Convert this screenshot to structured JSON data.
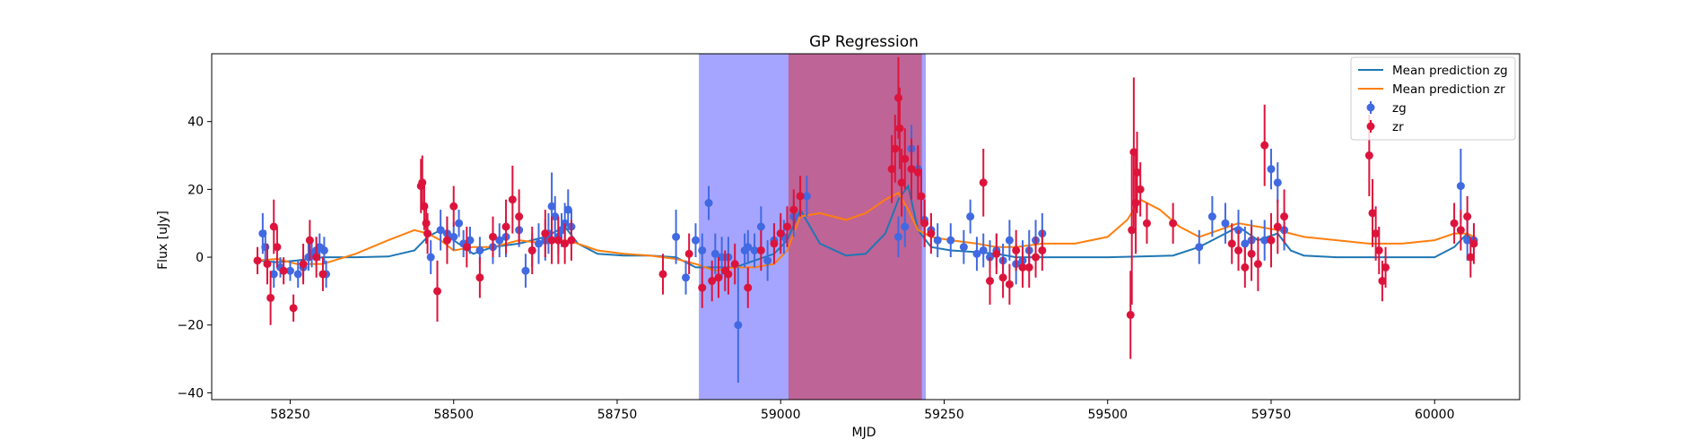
{
  "chart_data": {
    "type": "scatter",
    "title": "GP Regression",
    "xlabel": "MJD",
    "ylabel": "Flux [uJy]",
    "xlim": [
      58130,
      60130
    ],
    "ylim": [
      -42,
      60
    ],
    "xticks": [
      58250,
      58500,
      58750,
      59000,
      59250,
      59500,
      59750,
      60000
    ],
    "yticks": [
      -40,
      -20,
      0,
      20,
      40
    ],
    "grid": false,
    "legend_position": "top-right",
    "colors": {
      "zg_line": "#1f77b4",
      "zr_line": "#ff7f0e",
      "zg_points": "#4169e1",
      "zr_points": "#dc143c",
      "span_blue": "#8c8cff",
      "span_red": "#c06090"
    },
    "spans": [
      {
        "name": "zg",
        "x0": 58875,
        "x1": 59222,
        "color": "#8c8cff"
      },
      {
        "name": "zr",
        "x0": 59012,
        "x1": 59216,
        "color": "#c06090"
      }
    ],
    "legend": [
      {
        "label": "Mean prediction zg",
        "kind": "line",
        "color": "#1f77b4"
      },
      {
        "label": "Mean prediction zr",
        "kind": "line",
        "color": "#ff7f0e"
      },
      {
        "label": "zg",
        "kind": "errorbar",
        "color": "#4169e1"
      },
      {
        "label": "zr",
        "kind": "errorbar",
        "color": "#dc143c"
      }
    ],
    "series": [
      {
        "name": "Mean prediction zg",
        "kind": "line",
        "color": "#1f77b4",
        "x": [
          58200,
          58230,
          58260,
          58300,
          58350,
          58400,
          58440,
          58460,
          58480,
          58500,
          58530,
          58560,
          58600,
          58640,
          58670,
          58690,
          58720,
          58760,
          58800,
          58840,
          58870,
          58900,
          58930,
          58960,
          58990,
          59010,
          59030,
          59060,
          59100,
          59130,
          59160,
          59180,
          59195,
          59210,
          59230,
          59260,
          59300,
          59330,
          59360,
          59400,
          59450,
          59500,
          59550,
          59600,
          59640,
          59670,
          59700,
          59730,
          59760,
          59780,
          59800,
          59850,
          59900,
          59950,
          60000,
          60030,
          60050,
          60060
        ],
        "y": [
          -1,
          -1.5,
          -1,
          0,
          0,
          0.2,
          2,
          6,
          8,
          5,
          1,
          3,
          4,
          6,
          9,
          4,
          1,
          0.5,
          0.5,
          0,
          -3,
          -3,
          -3,
          -1,
          1,
          5,
          14,
          4,
          0.5,
          1,
          7,
          17,
          21,
          8,
          3,
          2,
          1.5,
          1,
          0,
          0,
          0,
          0,
          0.2,
          0.5,
          3,
          6,
          9,
          5,
          7,
          2,
          0.5,
          0,
          0,
          0,
          0,
          3,
          7,
          4
        ]
      },
      {
        "name": "Mean prediction zr",
        "kind": "line",
        "color": "#ff7f0e",
        "x": [
          58200,
          58230,
          58260,
          58300,
          58350,
          58400,
          58440,
          58460,
          58480,
          58500,
          58530,
          58560,
          58600,
          58640,
          58670,
          58690,
          58720,
          58760,
          58800,
          58840,
          58870,
          58900,
          58930,
          58960,
          58990,
          59010,
          59030,
          59060,
          59100,
          59130,
          59160,
          59180,
          59195,
          59210,
          59230,
          59260,
          59300,
          59330,
          59360,
          59400,
          59450,
          59500,
          59530,
          59550,
          59580,
          59610,
          59640,
          59670,
          59700,
          59730,
          59760,
          59780,
          59800,
          59850,
          59900,
          59950,
          60000,
          60030,
          60050,
          60060
        ],
        "y": [
          -1,
          -0.5,
          -2,
          -2,
          1,
          5,
          8,
          7,
          5,
          2,
          3,
          3,
          5,
          4,
          5,
          4,
          2,
          1,
          0.5,
          -0.5,
          -2,
          -4,
          -3,
          -3,
          -2,
          2,
          12,
          13,
          11,
          13,
          17,
          19,
          14,
          8,
          6,
          5,
          4,
          3,
          3,
          4,
          4,
          6,
          11,
          17,
          14,
          9,
          6,
          8,
          10,
          9,
          8,
          7,
          6,
          5,
          4,
          4,
          5,
          7,
          7,
          6
        ]
      },
      {
        "name": "zg",
        "kind": "errorbar",
        "color": "#4169e1",
        "x": [
          58208,
          58212,
          58225,
          58235,
          58250,
          58262,
          58270,
          58278,
          58283,
          58290,
          58295,
          58302,
          58305,
          58465,
          58480,
          58490,
          58500,
          58508,
          58515,
          58525,
          58540,
          58560,
          58570,
          58580,
          58600,
          58610,
          58620,
          58630,
          58640,
          58645,
          58650,
          58655,
          58660,
          58665,
          58670,
          58675,
          58680,
          58840,
          58855,
          58870,
          58880,
          58890,
          58900,
          58910,
          58920,
          58935,
          58945,
          58950,
          58960,
          58970,
          58980,
          58990,
          59000,
          59005,
          59010,
          59020,
          59030,
          59040,
          59180,
          59190,
          59200,
          59210,
          59220,
          59230,
          59240,
          59260,
          59280,
          59290,
          59300,
          59310,
          59320,
          59330,
          59340,
          59350,
          59360,
          59370,
          59380,
          59390,
          59400,
          59640,
          59660,
          59680,
          59700,
          59710,
          59720,
          59740,
          59750,
          59760,
          59770,
          60040,
          60050,
          60060
        ],
        "y": [
          7,
          3,
          -5,
          -3,
          -4,
          -5,
          -3,
          0,
          1,
          2,
          3,
          2,
          -5,
          0,
          8,
          7,
          6,
          10,
          4,
          5,
          2,
          3,
          5,
          6,
          8,
          -4,
          2,
          4,
          5,
          7,
          15,
          12,
          6,
          8,
          10,
          14,
          9,
          6,
          -6,
          5,
          2,
          16,
          1,
          0,
          0,
          -20,
          2,
          3,
          2,
          9,
          -1,
          5,
          7,
          6,
          9,
          12,
          18,
          18,
          6,
          9,
          32,
          26,
          11,
          8,
          5,
          5,
          3,
          12,
          1,
          2,
          0,
          2,
          -1,
          5,
          -2,
          -1,
          2,
          5,
          7,
          3,
          12,
          10,
          8,
          4,
          5,
          5,
          26,
          22,
          8,
          21,
          5,
          5
        ],
        "err": [
          6,
          5,
          4,
          3,
          3,
          4,
          4,
          4,
          4,
          4,
          4,
          4,
          4,
          5,
          6,
          5,
          4,
          4,
          4,
          4,
          4,
          5,
          5,
          6,
          5,
          5,
          5,
          6,
          6,
          6,
          10,
          6,
          5,
          5,
          6,
          6,
          5,
          8,
          5,
          5,
          5,
          5,
          6,
          6,
          6,
          17,
          5,
          5,
          5,
          6,
          6,
          5,
          5,
          5,
          6,
          6,
          6,
          6,
          6,
          6,
          7,
          7,
          6,
          5,
          5,
          5,
          5,
          5,
          5,
          5,
          5,
          5,
          5,
          6,
          6,
          6,
          6,
          6,
          6,
          5,
          6,
          6,
          6,
          5,
          6,
          6,
          6,
          6,
          6,
          11,
          6,
          5
        ]
      },
      {
        "name": "zr",
        "kind": "errorbar",
        "color": "#dc143c",
        "x": [
          58200,
          58215,
          58220,
          58225,
          58230,
          58240,
          58255,
          58270,
          58280,
          58290,
          58300,
          58450,
          58452,
          58455,
          58458,
          58460,
          58475,
          58490,
          58500,
          58520,
          58540,
          58560,
          58580,
          58590,
          58600,
          58620,
          58640,
          58650,
          58660,
          58670,
          58680,
          58820,
          58860,
          58880,
          58895,
          58905,
          58915,
          58920,
          58930,
          58950,
          58970,
          58990,
          59000,
          59010,
          59020,
          59030,
          59170,
          59175,
          59180,
          59182,
          59185,
          59190,
          59200,
          59210,
          59215,
          59220,
          59230,
          59310,
          59320,
          59330,
          59340,
          59350,
          59360,
          59370,
          59380,
          59390,
          59400,
          59535,
          59537,
          59540,
          59543,
          59545,
          59550,
          59560,
          59600,
          59690,
          59700,
          59710,
          59720,
          59730,
          59740,
          59750,
          59760,
          59770,
          59900,
          59905,
          59910,
          59915,
          59920,
          59925,
          60030,
          60040,
          60050,
          60055,
          60060
        ],
        "y": [
          -1,
          -2,
          -12,
          9,
          3,
          -4,
          -15,
          -2,
          5,
          0,
          -5,
          21,
          22,
          15,
          10,
          7,
          -10,
          5,
          15,
          3,
          -6,
          6,
          9,
          17,
          12,
          2,
          7,
          5,
          5,
          4,
          5,
          -5,
          1,
          -9,
          -7,
          -6,
          -4,
          -5,
          -2,
          -9,
          2,
          4,
          7,
          9,
          14,
          18,
          26,
          32,
          47,
          38,
          22,
          29,
          26,
          25,
          18,
          10,
          7,
          22,
          -7,
          1,
          -6,
          -8,
          2,
          -3,
          -3,
          0,
          2,
          -17,
          8,
          31,
          16,
          25,
          20,
          10,
          10,
          4,
          2,
          -3,
          1,
          -2,
          33,
          5,
          9,
          12,
          30,
          13,
          7,
          2,
          -7,
          -3,
          10,
          8,
          12,
          0,
          4
        ],
        "err": [
          4,
          6,
          8,
          8,
          6,
          4,
          4,
          6,
          6,
          6,
          5,
          8,
          8,
          7,
          6,
          6,
          9,
          7,
          6,
          6,
          6,
          6,
          8,
          10,
          8,
          7,
          7,
          7,
          7,
          6,
          6,
          6,
          6,
          6,
          6,
          6,
          6,
          6,
          6,
          6,
          6,
          6,
          6,
          6,
          6,
          6,
          10,
          10,
          12,
          12,
          10,
          9,
          9,
          8,
          8,
          7,
          6,
          10,
          7,
          6,
          6,
          6,
          6,
          6,
          6,
          6,
          6,
          13,
          22,
          22,
          15,
          12,
          8,
          6,
          6,
          6,
          6,
          6,
          8,
          8,
          12,
          8,
          8,
          8,
          12,
          10,
          8,
          7,
          6,
          6,
          6,
          6,
          6,
          6,
          6
        ]
      }
    ]
  }
}
